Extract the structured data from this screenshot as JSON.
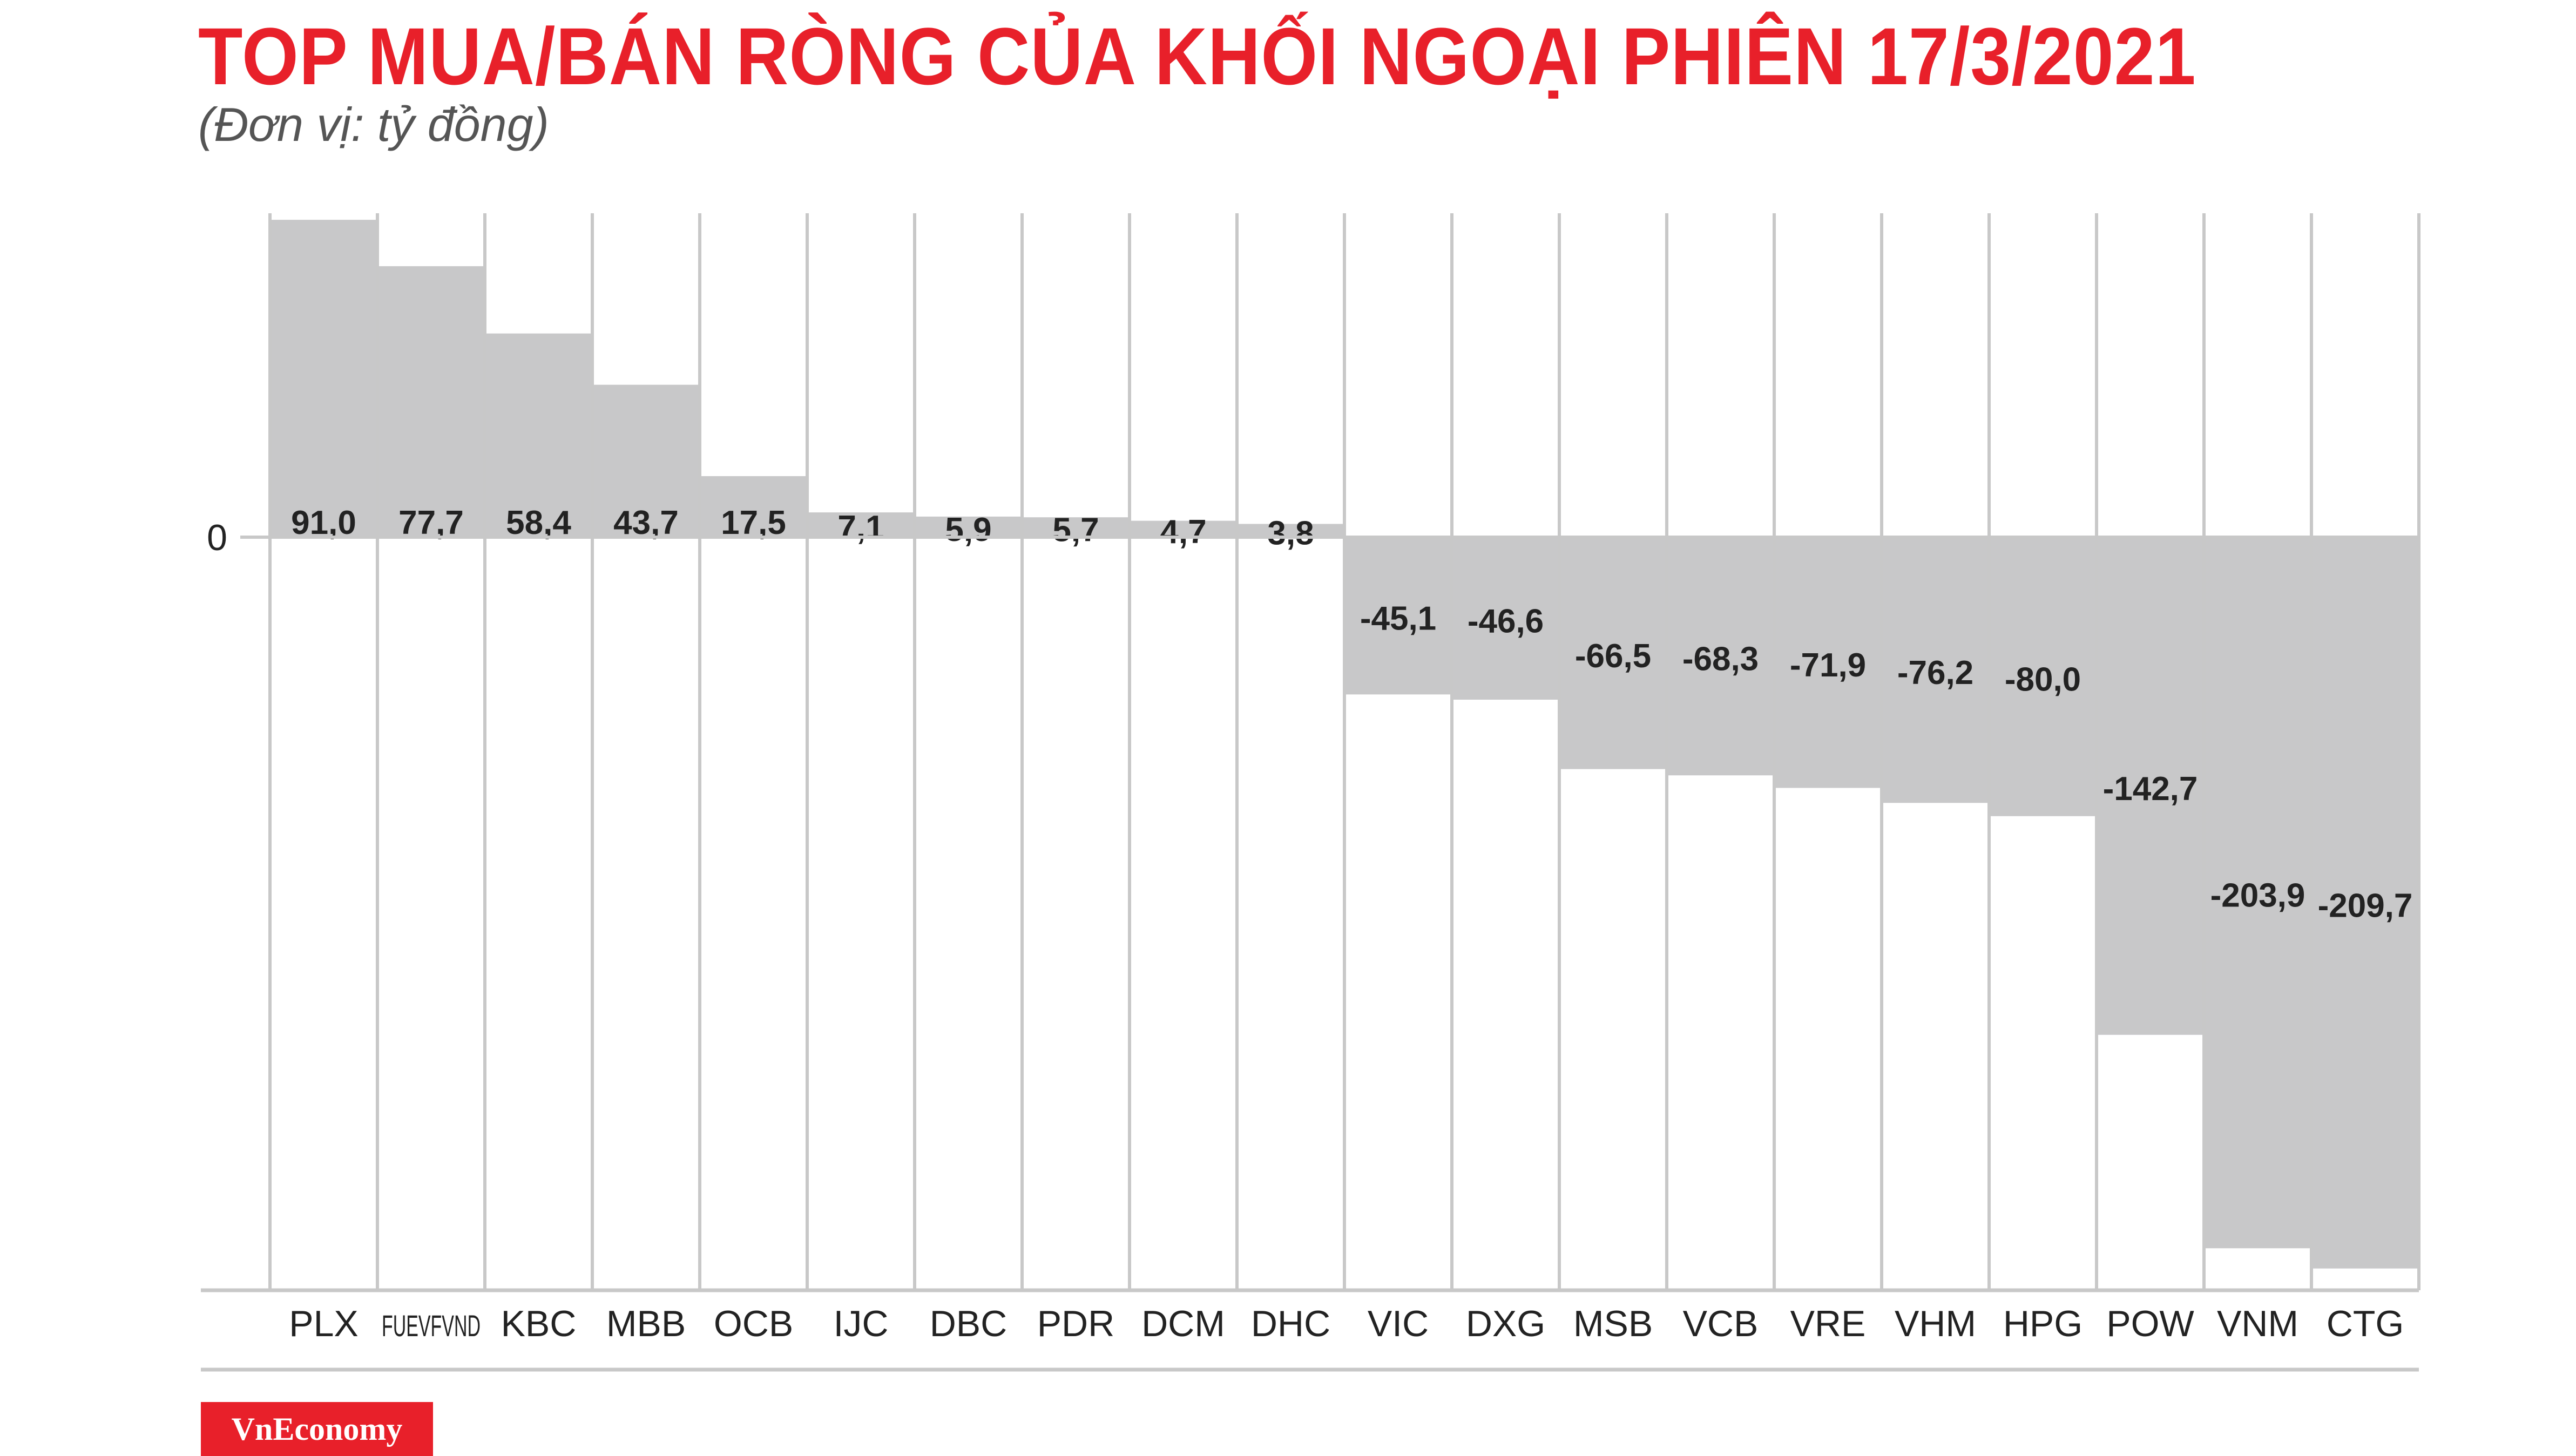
{
  "chart_data": {
    "type": "bar",
    "title": "TOP MUA/BÁN RÒNG CỦA KHỐI NGOẠI PHIÊN 17/3/2021",
    "subtitle": "(Đơn vị: tỷ đồng)",
    "zero_label": "0",
    "categories": [
      "PLX",
      "FUEVFVND",
      "KBC",
      "MBB",
      "OCB",
      "IJC",
      "DBC",
      "PDR",
      "DCM",
      "DHC",
      "VIC",
      "DXG",
      "MSB",
      "VCB",
      "VRE",
      "VHM",
      "HPG",
      "POW",
      "VNM",
      "CTG"
    ],
    "values": [
      91.0,
      77.7,
      58.4,
      43.7,
      17.5,
      7.1,
      5.9,
      5.7,
      4.7,
      3.8,
      -45.1,
      -46.6,
      -66.5,
      -68.3,
      -71.9,
      -76.2,
      -80.0,
      -142.7,
      -203.9,
      -209.7
    ],
    "value_labels": [
      "91,0",
      "77,7",
      "58,4",
      "43,7",
      "17,5",
      "7,1",
      "5,9",
      "5,7",
      "4,7",
      "3,8",
      "-45,1",
      "-46,6",
      "-66,5",
      "-68,3",
      "-71,9",
      "-76,2",
      "-80,0",
      "-142,7",
      "-203,9",
      "-209,7"
    ],
    "ylim": [
      -209.7,
      91.0
    ],
    "grid": true,
    "colors": {
      "bar": "#c8c8c9",
      "title": "#e8202a",
      "grid": "#c8c8c8",
      "text": "#222222"
    }
  },
  "brand": {
    "logo_text": "VnEconomy"
  }
}
